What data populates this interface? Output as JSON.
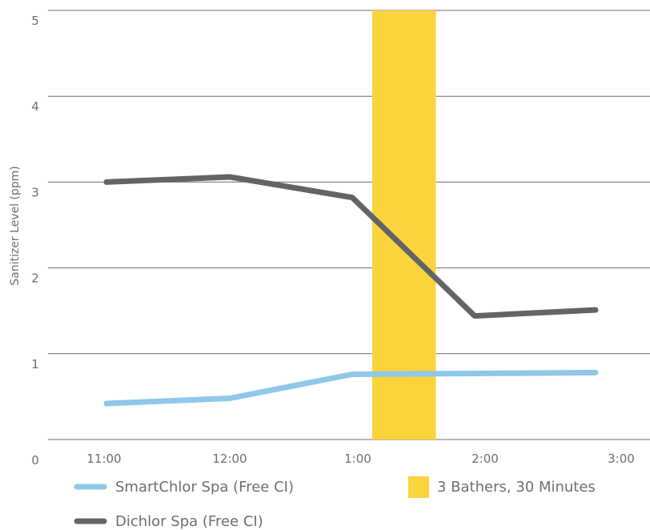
{
  "chart_data": {
    "type": "line",
    "ylabel": "Sanitizer Level (ppm)",
    "xlabel": "",
    "title": "",
    "categories": [
      "11:00",
      "12:00",
      "1:00",
      "2:00",
      "3:00"
    ],
    "y_ticks": [
      "0",
      "1",
      "2",
      "3",
      "4",
      "5"
    ],
    "ylim": [
      0,
      5
    ],
    "grid": true,
    "series": [
      {
        "name": "SmartChlor Spa (Free CI)",
        "color": "#8fc8e8",
        "x": [
          "11:00",
          "12:00",
          "1:00",
          "2:00",
          "3:00"
        ],
        "values": [
          0.42,
          0.48,
          0.76,
          0.77,
          0.78
        ]
      },
      {
        "name": "Dichlor Spa (Free CI)",
        "color": "#636466",
        "x": [
          "11:00",
          "12:00",
          "1:00",
          "2:00",
          "3:00"
        ],
        "values": [
          3.0,
          3.06,
          2.82,
          1.44,
          1.51
        ]
      }
    ],
    "annotations": [
      {
        "label": "3 Bathers, 30 Minutes",
        "type": "band",
        "x_start": "1:00",
        "x_end": "1:30",
        "color": "#fbd33c"
      }
    ],
    "legend_position": "bottom"
  }
}
